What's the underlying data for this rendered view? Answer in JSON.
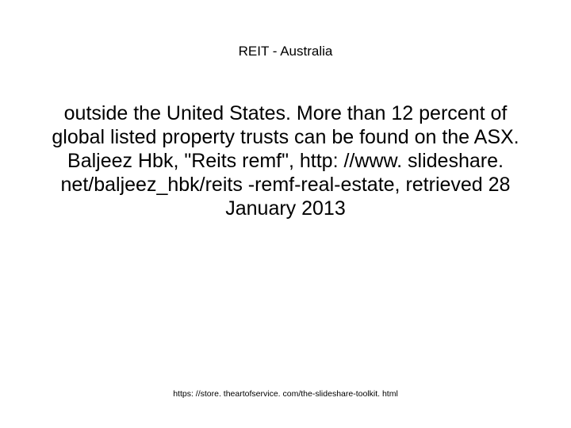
{
  "slide": {
    "title": "REIT - Australia",
    "body": " outside the United States. More than 12 percent of global listed property trusts can be found on the ASX. Baljeez Hbk, \"Reits remf\", http: //www. slideshare. net/baljeez_hbk/reits -remf-real-estate, retrieved 28 January 2013",
    "footer_url": "https: //store. theartofservice. com/the-slideshare-toolkit. html"
  },
  "style": {
    "background_color": "#ffffff",
    "title_fontsize": 17,
    "title_color": "#000000",
    "body_fontsize": 25,
    "body_color": "#000000",
    "footer_fontsize": 10.5,
    "footer_color": "#000000",
    "font_family": "Arial"
  }
}
